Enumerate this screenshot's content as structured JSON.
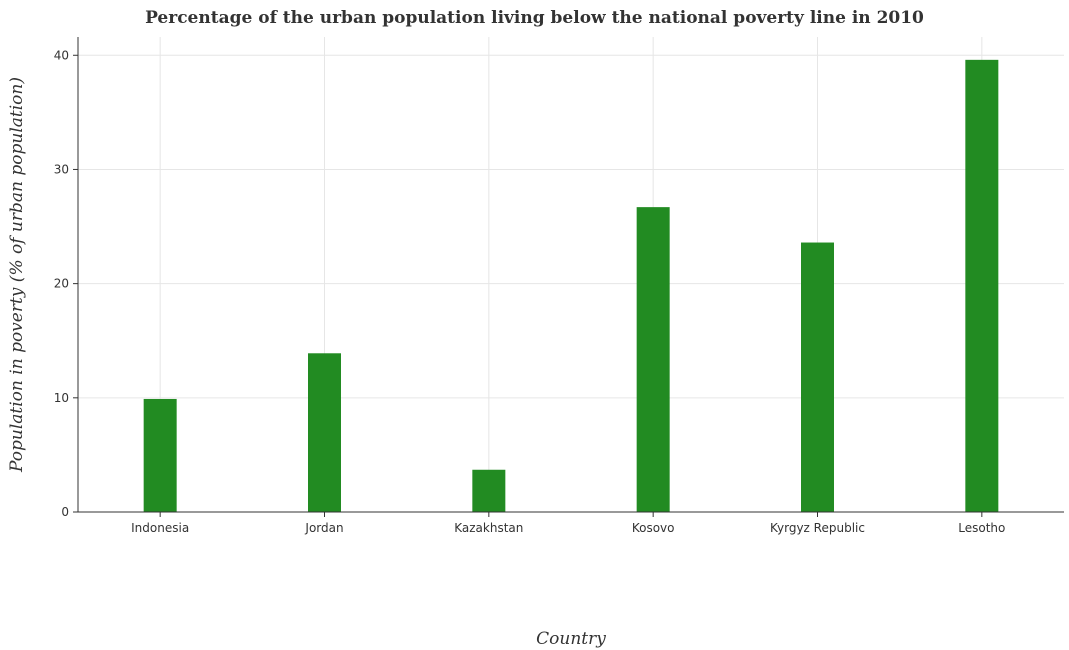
{
  "chart_data": {
    "type": "bar",
    "title": "Percentage of the urban population living below the national poverty line in 2010",
    "xlabel": "Country",
    "ylabel": "Population in poverty (% of urban population)",
    "categories": [
      "Indonesia",
      "Jordan",
      "Kazakhstan",
      "Kosovo",
      "Kyrgyz Republic",
      "Lesotho"
    ],
    "values": [
      9.9,
      13.9,
      3.7,
      26.7,
      23.6,
      39.6
    ],
    "ylim": [
      0,
      41.6
    ],
    "yticks": [
      0,
      10,
      20,
      30,
      40
    ],
    "grid": true,
    "legend": "none",
    "bar_color": "#228b22"
  }
}
